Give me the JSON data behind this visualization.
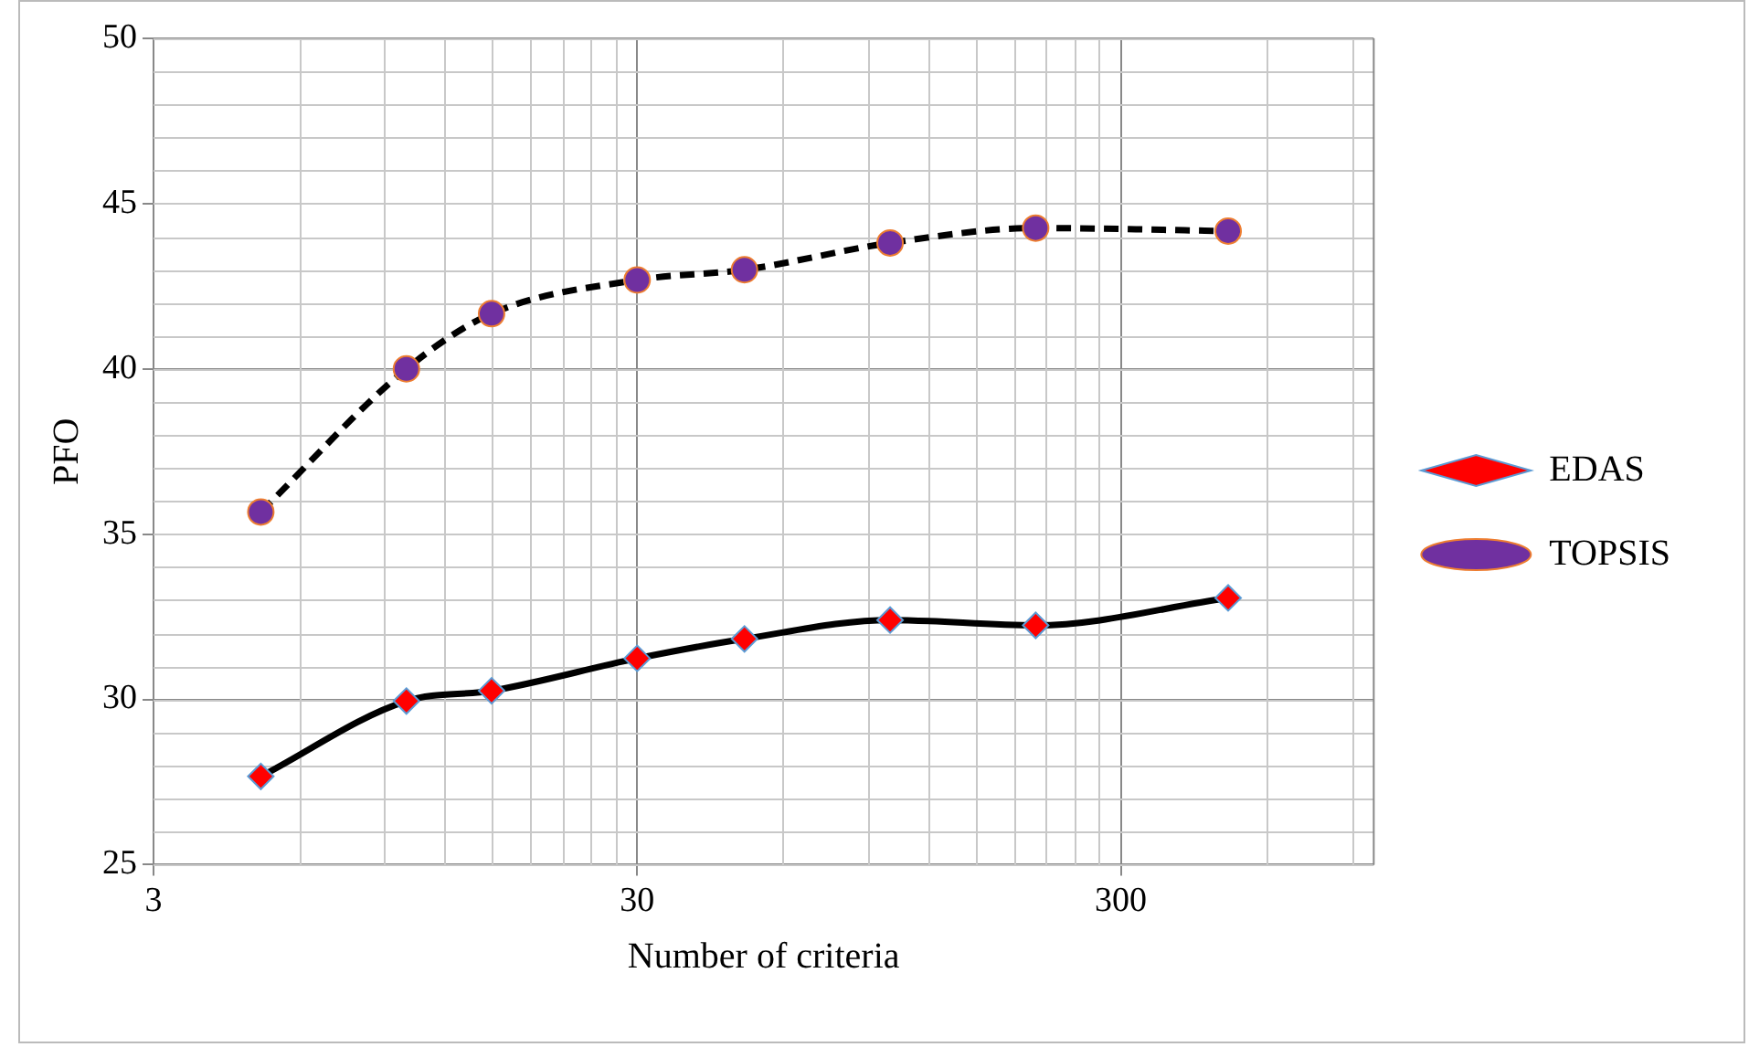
{
  "chart_data": {
    "type": "line",
    "xlabel": "Number of criteria",
    "ylabel": "PFO",
    "x": [
      5,
      10,
      15,
      30,
      50,
      100,
      200,
      500
    ],
    "series": [
      {
        "name": "EDAS",
        "color": "#ff0000",
        "marker": "diamond",
        "line_style": "solid",
        "values": [
          27.67,
          29.95,
          30.26,
          31.24,
          31.83,
          32.4,
          32.24,
          33.07
        ]
      },
      {
        "name": "TOPSIS",
        "color": "#7030a0",
        "marker": "circle",
        "line_style": "dashed",
        "values": [
          35.67,
          40.0,
          41.67,
          42.69,
          43.0,
          43.81,
          44.26,
          44.17
        ]
      }
    ],
    "log": "x",
    "xlim": [
      3,
      1000
    ],
    "xticks": [
      3,
      30,
      300
    ],
    "ylim": [
      25,
      50
    ],
    "yticks": [
      25,
      30,
      35,
      40,
      45,
      50
    ],
    "grid": true,
    "legend": "right"
  }
}
